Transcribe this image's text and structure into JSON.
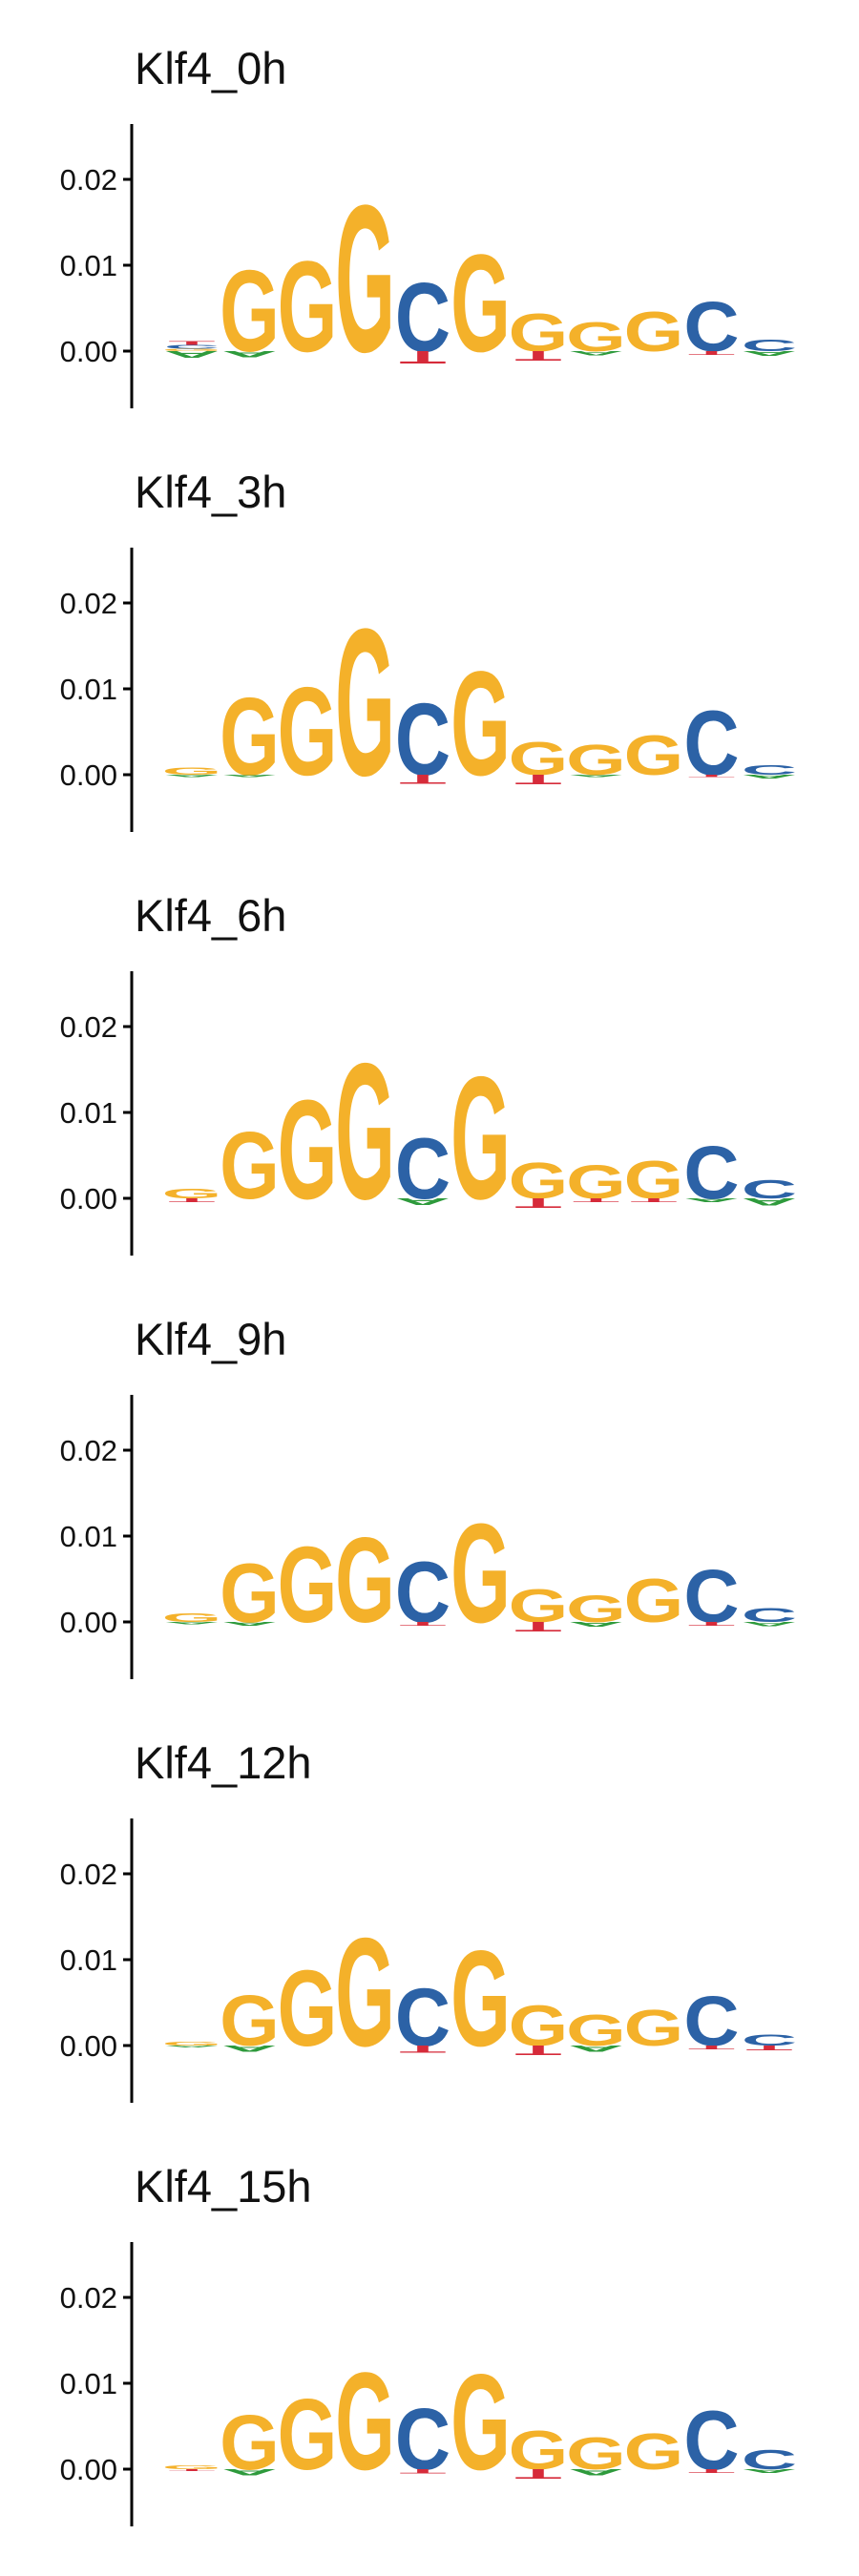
{
  "colors": {
    "G": "#F4B12A",
    "C": "#2C62A6",
    "T": "#D62B3A",
    "A": "#2E9A3C",
    "axis": "#000000",
    "text": "#111111"
  },
  "chart_data": [
    {
      "type": "sequence-logo",
      "title": "Klf4_0h",
      "yticks": [
        "0.00",
        "0.01",
        "0.02"
      ],
      "ylim": [
        -0.005,
        0.026
      ],
      "positions": [
        {
          "above": [
            [
              "G",
              0.0003
            ],
            [
              "C",
              0.0004
            ],
            [
              "T",
              0.0004
            ]
          ],
          "below": [
            [
              "A",
              0.0008
            ]
          ]
        },
        {
          "above": [
            [
              "G",
              0.0097
            ]
          ],
          "below": [
            [
              "A",
              0.0007
            ]
          ]
        },
        {
          "above": [
            [
              "G",
              0.0108
            ]
          ],
          "below": []
        },
        {
          "above": [
            [
              "G",
              0.0175
            ]
          ],
          "below": []
        },
        {
          "above": [
            [
              "C",
              0.0082
            ]
          ],
          "below": [
            [
              "T",
              0.0015
            ]
          ]
        },
        {
          "above": [
            [
              "G",
              0.0116
            ]
          ],
          "below": []
        },
        {
          "above": [
            [
              "G",
              0.0045
            ]
          ],
          "below": [
            [
              "T",
              0.0012
            ]
          ]
        },
        {
          "above": [
            [
              "G",
              0.0035
            ]
          ],
          "below": [
            [
              "A",
              0.0005
            ]
          ]
        },
        {
          "above": [
            [
              "G",
              0.0047
            ]
          ],
          "below": []
        },
        {
          "above": [
            [
              "C",
              0.0059
            ]
          ],
          "below": [
            [
              "T",
              0.0004
            ]
          ]
        },
        {
          "above": [
            [
              "C",
              0.0014
            ]
          ],
          "below": [
            [
              "A",
              0.0006
            ]
          ]
        }
      ]
    },
    {
      "type": "sequence-logo",
      "title": "Klf4_3h",
      "yticks": [
        "0.00",
        "0.01",
        "0.02"
      ],
      "ylim": [
        -0.005,
        0.026
      ],
      "positions": [
        {
          "above": [
            [
              "G",
              0.0009
            ]
          ],
          "below": [
            [
              "A",
              0.0003
            ]
          ]
        },
        {
          "above": [
            [
              "G",
              0.0092
            ]
          ],
          "below": [
            [
              "A",
              0.0003
            ]
          ]
        },
        {
          "above": [
            [
              "G",
              0.0105
            ]
          ],
          "below": []
        },
        {
          "above": [
            [
              "G",
              0.0175
            ]
          ],
          "below": []
        },
        {
          "above": [
            [
              "C",
              0.0086
            ]
          ],
          "below": [
            [
              "T",
              0.0011
            ]
          ]
        },
        {
          "above": [
            [
              "G",
              0.0124
            ]
          ],
          "below": []
        },
        {
          "above": [
            [
              "G",
              0.0039
            ]
          ],
          "below": [
            [
              "T",
              0.0012
            ]
          ]
        },
        {
          "above": [
            [
              "G",
              0.0036
            ]
          ],
          "below": [
            [
              "A",
              0.0003
            ]
          ]
        },
        {
          "above": [
            [
              "G",
              0.0047
            ]
          ],
          "below": []
        },
        {
          "above": [
            [
              "C",
              0.0077
            ]
          ],
          "below": [
            [
              "T",
              0.0003
            ]
          ]
        },
        {
          "above": [
            [
              "C",
              0.0012
            ]
          ],
          "below": [
            [
              "A",
              0.0004
            ]
          ]
        }
      ]
    },
    {
      "type": "sequence-logo",
      "title": "Klf4_6h",
      "yticks": [
        "0.00",
        "0.01",
        "0.02"
      ],
      "ylim": [
        -0.005,
        0.026
      ],
      "positions": [
        {
          "above": [
            [
              "G",
              0.0012
            ]
          ],
          "below": [
            [
              "T",
              0.0004
            ]
          ]
        },
        {
          "above": [
            [
              "G",
              0.008
            ]
          ],
          "below": []
        },
        {
          "above": [
            [
              "G",
              0.0118
            ]
          ],
          "below": []
        },
        {
          "above": [
            [
              "G",
              0.0162
            ]
          ],
          "below": []
        },
        {
          "above": [
            [
              "C",
              0.0072
            ]
          ],
          "below": [
            [
              "A",
              0.0008
            ]
          ]
        },
        {
          "above": [
            [
              "G",
              0.0146
            ]
          ],
          "below": []
        },
        {
          "above": [
            [
              "G",
              0.0043
            ]
          ],
          "below": [
            [
              "T",
              0.0012
            ]
          ]
        },
        {
          "above": [
            [
              "G",
              0.004
            ]
          ],
          "below": [
            [
              "T",
              0.0004
            ]
          ]
        },
        {
          "above": [
            [
              "G",
              0.0045
            ]
          ],
          "below": [
            [
              "T",
              0.0004
            ]
          ]
        },
        {
          "above": [
            [
              "C",
              0.0063
            ]
          ],
          "below": [
            [
              "A",
              0.0004
            ]
          ]
        },
        {
          "above": [
            [
              "C",
              0.0022
            ]
          ],
          "below": [
            [
              "A",
              0.0009
            ]
          ]
        }
      ]
    },
    {
      "type": "sequence-logo",
      "title": "Klf4_9h",
      "yticks": [
        "0.00",
        "0.01",
        "0.02"
      ],
      "ylim": [
        -0.005,
        0.026
      ],
      "positions": [
        {
          "above": [
            [
              "G",
              0.001
            ]
          ],
          "below": [
            [
              "A",
              0.0003
            ]
          ]
        },
        {
          "above": [
            [
              "G",
              0.007
            ]
          ],
          "below": [
            [
              "A",
              0.0004
            ]
          ]
        },
        {
          "above": [
            [
              "G",
              0.009
            ]
          ],
          "below": []
        },
        {
          "above": [
            [
              "G",
              0.0101
            ]
          ],
          "below": []
        },
        {
          "above": [
            [
              "C",
              0.0072
            ]
          ],
          "below": [
            [
              "T",
              0.0004
            ]
          ]
        },
        {
          "above": [
            [
              "G",
              0.0118
            ]
          ],
          "below": []
        },
        {
          "above": [
            [
              "G",
              0.0039
            ]
          ],
          "below": [
            [
              "T",
              0.0012
            ]
          ]
        },
        {
          "above": [
            [
              "G",
              0.0032
            ]
          ],
          "below": [
            [
              "A",
              0.0006
            ]
          ]
        },
        {
          "above": [
            [
              "G",
              0.0052
            ]
          ],
          "below": []
        },
        {
          "above": [
            [
              "C",
              0.0063
            ]
          ],
          "below": [
            [
              "T",
              0.0004
            ]
          ]
        },
        {
          "above": [
            [
              "C",
              0.0017
            ]
          ],
          "below": [
            [
              "A",
              0.0005
            ]
          ]
        }
      ]
    },
    {
      "type": "sequence-logo",
      "title": "Klf4_12h",
      "yticks": [
        "0.00",
        "0.01",
        "0.02"
      ],
      "ylim": [
        -0.005,
        0.026
      ],
      "positions": [
        {
          "above": [
            [
              "G",
              0.0004
            ]
          ],
          "below": [
            [
              "A",
              0.0002
            ]
          ]
        },
        {
          "above": [
            [
              "G",
              0.006
            ]
          ],
          "below": [
            [
              "A",
              0.0007
            ]
          ]
        },
        {
          "above": [
            [
              "G",
              0.009
            ]
          ],
          "below": []
        },
        {
          "above": [
            [
              "G",
              0.0129
            ]
          ],
          "below": []
        },
        {
          "above": [
            [
              "C",
              0.0069
            ]
          ],
          "below": [
            [
              "T",
              0.0009
            ]
          ]
        },
        {
          "above": [
            [
              "G",
              0.0114
            ]
          ],
          "below": []
        },
        {
          "above": [
            [
              "G",
              0.0048
            ]
          ],
          "below": [
            [
              "T",
              0.0012
            ]
          ]
        },
        {
          "above": [
            [
              "G",
              0.0037
            ]
          ],
          "below": [
            [
              "A",
              0.0007
            ]
          ]
        },
        {
          "above": [
            [
              "G",
              0.0043
            ]
          ],
          "below": []
        },
        {
          "above": [
            [
              "C",
              0.0059
            ]
          ],
          "below": [
            [
              "T",
              0.0004
            ]
          ]
        },
        {
          "above": [
            [
              "C",
              0.0013
            ]
          ],
          "below": [
            [
              "T",
              0.0006
            ]
          ]
        }
      ]
    },
    {
      "type": "sequence-logo",
      "title": "Klf4_15h",
      "yticks": [
        "0.00",
        "0.01",
        "0.02"
      ],
      "ylim": [
        -0.005,
        0.026
      ],
      "positions": [
        {
          "above": [
            [
              "G",
              0.0004
            ]
          ],
          "below": [
            [
              "T",
              0.0002
            ]
          ]
        },
        {
          "above": [
            [
              "G",
              0.0065
            ]
          ],
          "below": [
            [
              "A",
              0.0007
            ]
          ]
        },
        {
          "above": [
            [
              "G",
              0.0084
            ]
          ],
          "below": []
        },
        {
          "above": [
            [
              "G",
              0.0116
            ]
          ],
          "below": []
        },
        {
          "above": [
            [
              "C",
              0.0073
            ]
          ],
          "below": [
            [
              "T",
              0.0005
            ]
          ]
        },
        {
          "above": [
            [
              "G",
              0.0114
            ]
          ],
          "below": []
        },
        {
          "above": [
            [
              "G",
              0.0046
            ]
          ],
          "below": [
            [
              "T",
              0.0012
            ]
          ]
        },
        {
          "above": [
            [
              "G",
              0.0038
            ]
          ],
          "below": [
            [
              "A",
              0.0007
            ]
          ]
        },
        {
          "above": [
            [
              "G",
              0.0043
            ]
          ],
          "below": []
        },
        {
          "above": [
            [
              "C",
              0.007
            ]
          ],
          "below": [
            [
              "T",
              0.0004
            ]
          ]
        },
        {
          "above": [
            [
              "C",
              0.0023
            ]
          ],
          "below": [
            [
              "A",
              0.0004
            ]
          ]
        }
      ]
    }
  ]
}
